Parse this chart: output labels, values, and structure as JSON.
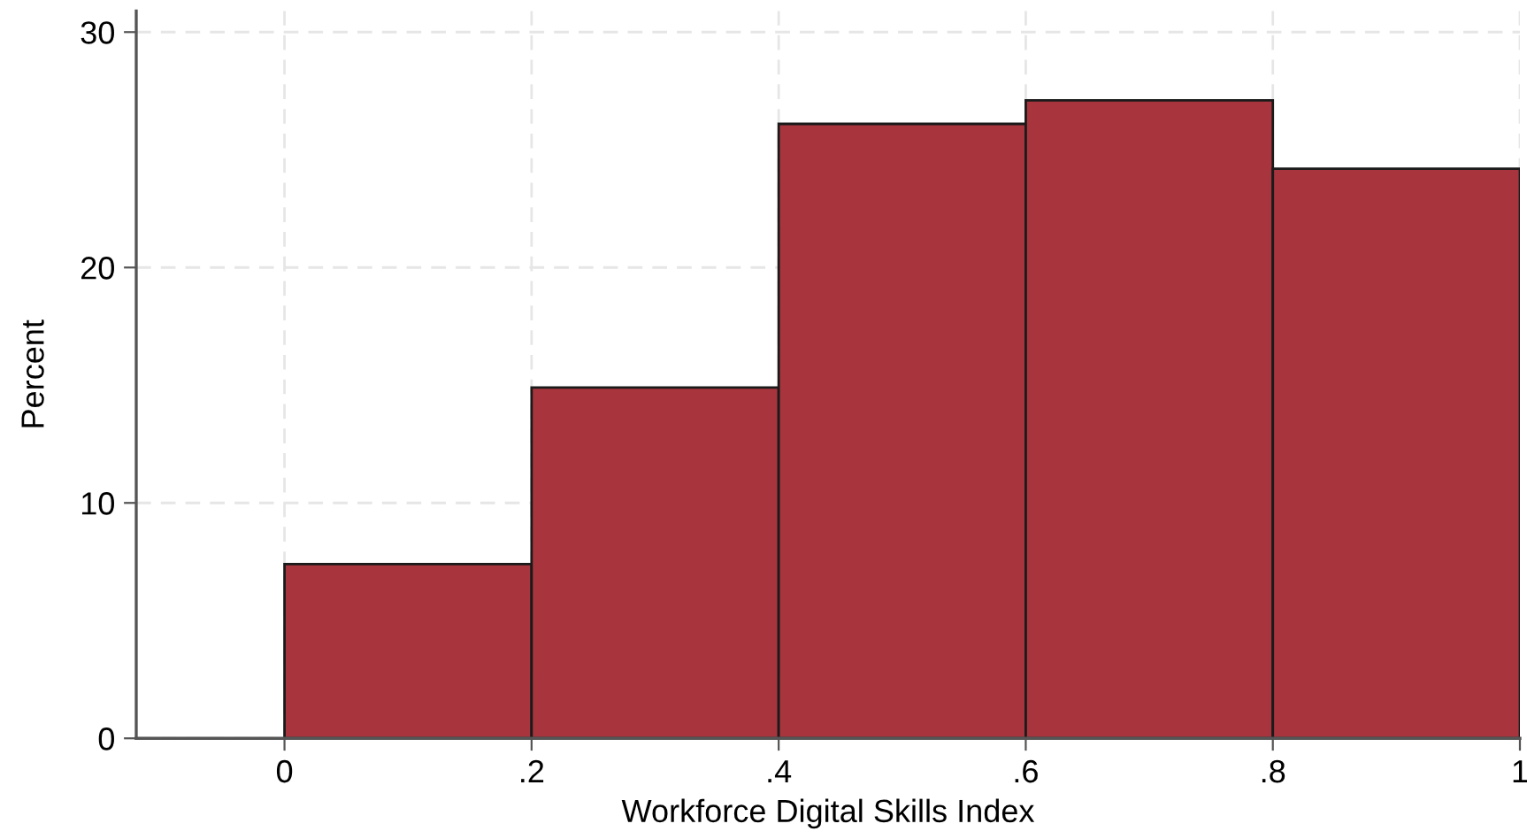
{
  "chart_data": {
    "type": "histogram",
    "xlabel": "Workforce Digital Skills Index",
    "ylabel": "Percent",
    "bins": [
      0,
      0.2,
      0.4,
      0.6,
      0.8,
      1
    ],
    "values": [
      7.4,
      14.9,
      26.1,
      27.1,
      24.2
    ],
    "color": "#a8353e",
    "xlim": [
      -0.12,
      1
    ],
    "ylim": [
      0,
      30.9
    ],
    "xticks": [
      {
        "value": 0,
        "label": "0"
      },
      {
        "value": 0.2,
        "label": ".2"
      },
      {
        "value": 0.4,
        "label": ".4"
      },
      {
        "value": 0.6,
        "label": ".6"
      },
      {
        "value": 0.8,
        "label": ".8"
      },
      {
        "value": 1,
        "label": "1"
      }
    ],
    "yticks": [
      0,
      10,
      20,
      30
    ],
    "grid": true
  }
}
